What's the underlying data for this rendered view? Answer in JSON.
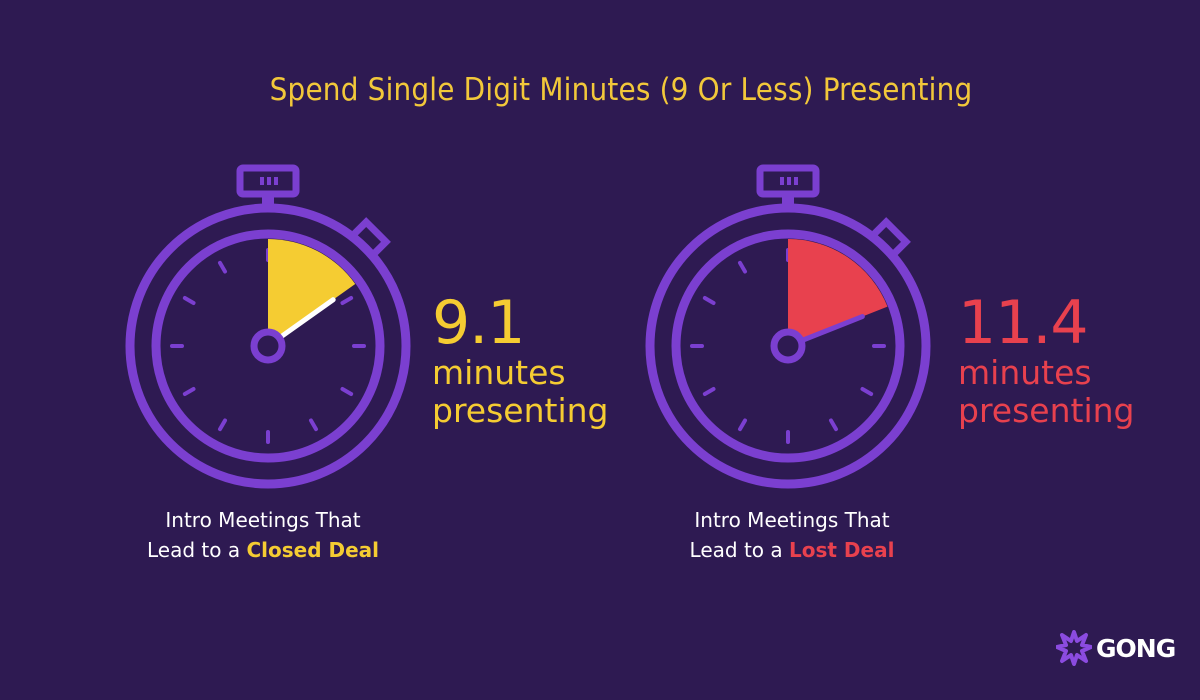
{
  "title": "Spend Single Digit Minutes (9 Or Less) Presenting",
  "colors": {
    "background": "#2e1a52",
    "ring": "#7b3fd0",
    "closed": "#f5cc32",
    "lost": "#e8414e",
    "title": "#f2c83a"
  },
  "panels": [
    {
      "value": "9.1",
      "unit_line1": "minutes",
      "unit_line2": "presenting",
      "caption_line1": "Intro Meetings That",
      "caption_prefix": "Lead to a ",
      "caption_highlight": "Closed Deal",
      "minutes": 9.1
    },
    {
      "value": "11.4",
      "unit_line1": "minutes",
      "unit_line2": "presenting",
      "caption_line1": "Intro Meetings That",
      "caption_prefix": "Lead to a ",
      "caption_highlight": "Lost Deal",
      "minutes": 11.4
    }
  ],
  "logo": {
    "text": "GONG",
    "icon": "gong-starburst-icon"
  }
}
